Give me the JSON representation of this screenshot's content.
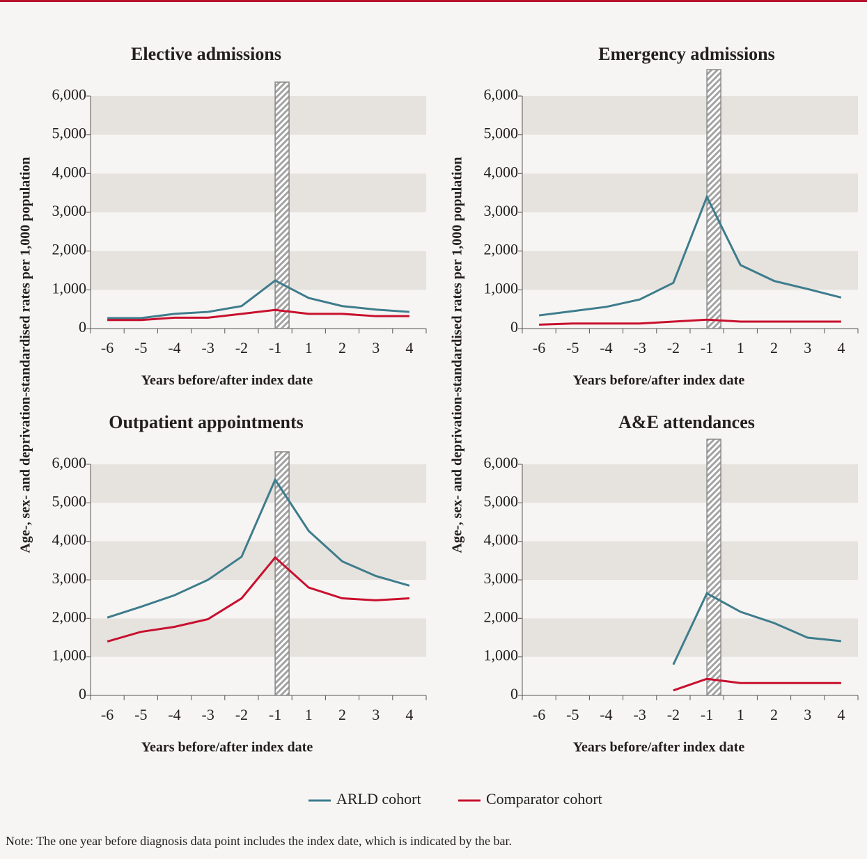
{
  "chart_data": [
    {
      "type": "line",
      "title": "Elective admissions",
      "xlabel": "Years before/after index date",
      "ylabel": "Age-, sex- and deprivation-standardised rates per 1,000 population",
      "categories": [
        "-6",
        "-5",
        "-4",
        "-3",
        "-2",
        "-1",
        "1",
        "2",
        "3",
        "4"
      ],
      "ylim": [
        0,
        6000
      ],
      "yticks": [
        0,
        {
          "value": 1000,
          "label": "1,000"
        },
        {
          "value": 2000,
          "label": "2,000"
        },
        {
          "value": 3000,
          "label": "3,000"
        },
        {
          "value": 4000,
          "label": "4,000"
        },
        {
          "value": 5000,
          "label": "5,000"
        },
        {
          "value": 6000,
          "label": "6,000"
        }
      ],
      "grid": true,
      "series": [
        {
          "name": "ARLD cohort",
          "color": "#3e7c8c",
          "values": [
            270,
            270,
            380,
            430,
            580,
            1240,
            790,
            580,
            490,
            430
          ]
        },
        {
          "name": "Comparator cohort",
          "color": "#c8102e",
          "values": [
            220,
            220,
            280,
            280,
            380,
            480,
            380,
            380,
            320,
            320
          ]
        }
      ]
    },
    {
      "type": "line",
      "title": "Emergency admissions",
      "xlabel": "Years before/after index date",
      "ylabel": "Age-, sex- and deprivation-standardised rates per 1,000 population",
      "categories": [
        "-6",
        "-5",
        "-4",
        "-3",
        "-2",
        "-1",
        "1",
        "2",
        "3",
        "4"
      ],
      "ylim": [
        0,
        6000
      ],
      "yticks": [
        0,
        {
          "value": 1000,
          "label": "1,000"
        },
        {
          "value": 2000,
          "label": "2,000"
        },
        {
          "value": 3000,
          "label": "3,000"
        },
        {
          "value": 4000,
          "label": "4,000"
        },
        {
          "value": 5000,
          "label": "5,000"
        },
        {
          "value": 6000,
          "label": "6,000"
        }
      ],
      "grid": true,
      "series": [
        {
          "name": "ARLD cohort",
          "color": "#3e7c8c",
          "values": [
            340,
            450,
            560,
            750,
            1180,
            3400,
            1640,
            1230,
            1020,
            800
          ]
        },
        {
          "name": "Comparator cohort",
          "color": "#c8102e",
          "values": [
            100,
            130,
            130,
            130,
            180,
            230,
            180,
            180,
            180,
            180
          ]
        }
      ]
    },
    {
      "type": "line",
      "title": "Outpatient appointments",
      "xlabel": "Years before/after index date",
      "categories": [
        "-6",
        "-5",
        "-4",
        "-3",
        "-2",
        "-1",
        "1",
        "2",
        "3",
        "4"
      ],
      "ylim": [
        0,
        6000
      ],
      "yticks": [
        0,
        {
          "value": 1000,
          "label": "1,000"
        },
        {
          "value": 2000,
          "label": "2,000"
        },
        {
          "value": 3000,
          "label": "3,000"
        },
        {
          "value": 4000,
          "label": "4,000"
        },
        {
          "value": 5000,
          "label": "5,000"
        },
        {
          "value": 6000,
          "label": "6,000"
        }
      ],
      "grid": true,
      "series": [
        {
          "name": "ARLD cohort",
          "color": "#3e7c8c",
          "values": [
            2020,
            2300,
            2600,
            3000,
            3600,
            5600,
            4270,
            3480,
            3100,
            2850
          ]
        },
        {
          "name": "Comparator cohort",
          "color": "#c8102e",
          "values": [
            1400,
            1650,
            1780,
            1980,
            2520,
            3580,
            2800,
            2520,
            2470,
            2520
          ]
        }
      ]
    },
    {
      "type": "line",
      "title": "A&E attendances",
      "xlabel": "Years before/after index date",
      "categories": [
        "-6",
        "-5",
        "-4",
        "-3",
        "-2",
        "-1",
        "1",
        "2",
        "3",
        "4"
      ],
      "ylim": [
        0,
        6000
      ],
      "yticks": [
        0,
        {
          "value": 1000,
          "label": "1,000"
        },
        {
          "value": 2000,
          "label": "2,000"
        },
        {
          "value": 3000,
          "label": "3,000"
        },
        {
          "value": 4000,
          "label": "4,000"
        },
        {
          "value": 5000,
          "label": "5,000"
        },
        {
          "value": 6000,
          "label": "6,000"
        }
      ],
      "grid": true,
      "series": [
        {
          "name": "ARLD cohort",
          "color": "#3e7c8c",
          "values": [
            null,
            null,
            null,
            null,
            800,
            2650,
            2170,
            1880,
            1500,
            1410
          ]
        },
        {
          "name": "Comparator cohort",
          "color": "#c8102e",
          "values": [
            null,
            null,
            null,
            null,
            130,
            430,
            320,
            320,
            320,
            320
          ]
        }
      ]
    }
  ],
  "note": "Note: The one year before diagnosis data point includes the index date, which is indicated by the bar."
}
